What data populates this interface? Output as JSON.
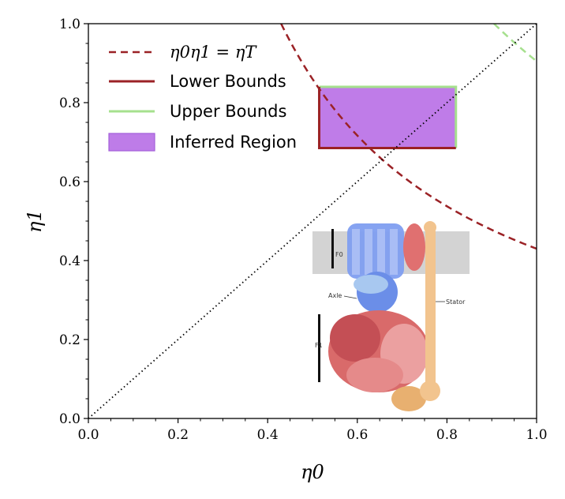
{
  "chart_data": {
    "type": "line",
    "xlabel": "η0",
    "ylabel": "η1",
    "xlim": [
      0.0,
      1.0
    ],
    "ylim": [
      0.0,
      1.0
    ],
    "xticks": [
      "0.0",
      "0.2",
      "0.4",
      "0.6",
      "0.8",
      "1.0"
    ],
    "yticks": [
      "0.0",
      "0.2",
      "0.4",
      "0.6",
      "0.8",
      "1.0"
    ],
    "grid": false,
    "legend_position": "top-left",
    "series": [
      {
        "name": "η0η1 = ηT",
        "style": "dashed",
        "color": "#9b2226",
        "product": 0.43
      },
      {
        "name": "Lower Bounds",
        "style": "solid",
        "color": "#9b2226",
        "rect": {
          "x": [
            0.515,
            0.82
          ],
          "y": [
            0.685,
            0.84
          ]
        }
      },
      {
        "name": "Upper Bounds",
        "style": "solid",
        "color": "#a6e08e",
        "rect": {
          "x": [
            0.515,
            0.82
          ],
          "y": [
            0.685,
            0.84
          ]
        },
        "curve_product": 0.905
      },
      {
        "name": "Inferred Region",
        "style": "fill",
        "color": "#b86ee6",
        "rect": {
          "x": [
            0.515,
            0.82
          ],
          "y": [
            0.685,
            0.84
          ]
        }
      },
      {
        "name": "",
        "style": "dotted",
        "color": "#000000",
        "x": [
          0,
          1
        ],
        "y": [
          0,
          1
        ]
      }
    ],
    "inset": {
      "labels": {
        "f0": "F0",
        "axle": "Axle",
        "stator": "Stator",
        "f1": "F1"
      }
    }
  }
}
